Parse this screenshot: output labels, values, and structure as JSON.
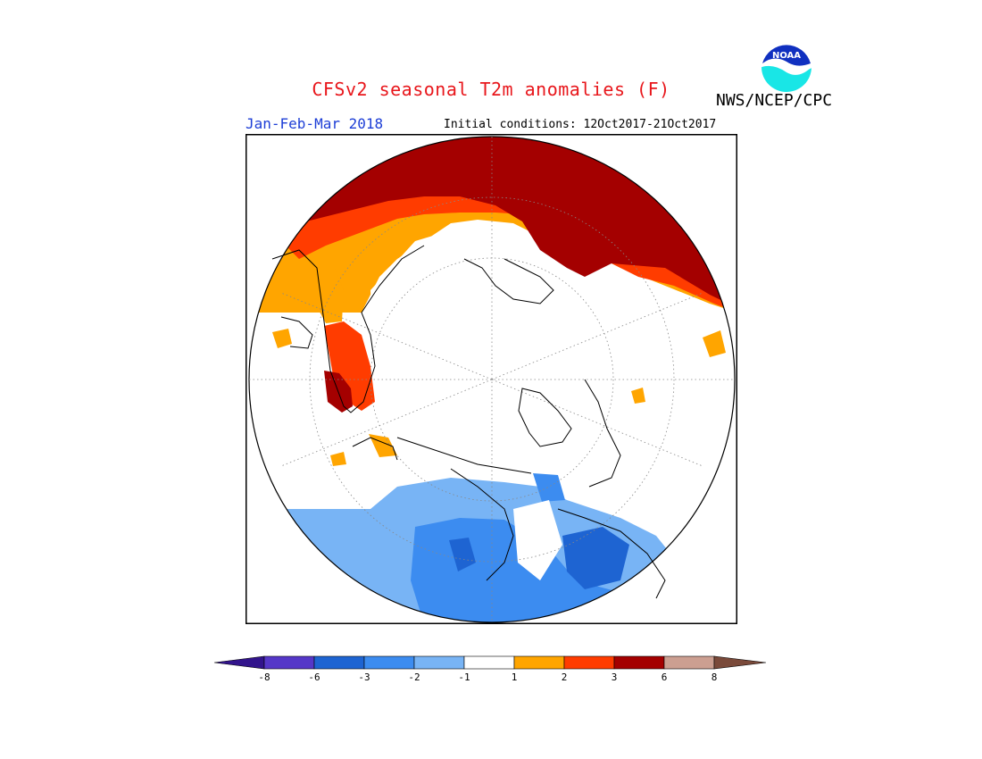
{
  "header": {
    "title": "CFSv2 seasonal T2m anomalies (F)",
    "agency": "NWS/NCEP/CPC",
    "period": "Jan-Feb-Mar 2018",
    "initial_conditions": "Initial conditions: 12Oct2017-21Oct2017",
    "logo_text": "NOAA"
  },
  "colors": {
    "title": "#e8161b",
    "period": "#1d3ed6",
    "warm_1_2": "#ffa500",
    "warm_2_3": "#ff3c00",
    "warm_3_6": "#a40000",
    "warm_6_8": "#cc9f91",
    "warm_gt_8": "#7a4a3a",
    "cool_1_2": "#78b4f5",
    "cool_2_3": "#3c8cf0",
    "cool_3_6": "#1e64d2",
    "cool_6_8": "#5537c8",
    "cool_lt_8": "#32148c"
  },
  "colorbar": {
    "labels": [
      "-8",
      "-6",
      "-3",
      "-2",
      "-1",
      "1",
      "2",
      "3",
      "6",
      "8"
    ],
    "bins": [
      "#32148c",
      "#5537c8",
      "#1e64d2",
      "#3c8cf0",
      "#78b4f5",
      "#ffffff",
      "#ffa500",
      "#ff3c00",
      "#a40000",
      "#cc9f91",
      "#7a4a3a"
    ]
  }
}
